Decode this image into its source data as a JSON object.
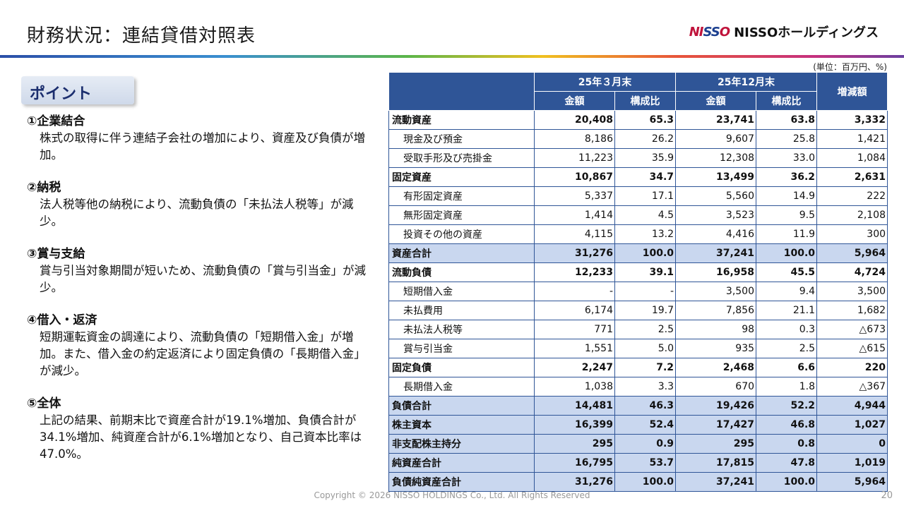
{
  "title": "財務状況：連結貸借対照表",
  "logo": {
    "mark_a": "NI",
    "mark_b": "SS",
    "mark_c": "O",
    "text": "NISSOホールディングス"
  },
  "unit": "(単位：百万円、%)",
  "point_label": "ポイント",
  "points": [
    {
      "head": "①企業結合",
      "body": "株式の取得に伴う連結子会社の増加により、資産及び負債が増加。"
    },
    {
      "head": "②納税",
      "body": "法人税等他の納税により、流動負債の「未払法人税等」が減少。"
    },
    {
      "head": "③賞与支給",
      "body": "賞与引当対象期間が短いため、流動負債の「賞与引当金」が減少。"
    },
    {
      "head": "④借入・返済",
      "body": "短期運転資金の調達により、流動負債の「短期借入金」が増加。また、借入金の約定返済により固定負債の「長期借入金」が減少。"
    },
    {
      "head": "⑤全体",
      "body": "上記の結果、前期末比で資産合計が19.1%増加、負債合計が34.1%増加、純資産合計が6.1%増加となり、自己資本比率は47.0%。"
    }
  ],
  "table": {
    "period1": "25年３月末",
    "period2": "25年12月末",
    "col_amount": "金額",
    "col_ratio": "構成比",
    "col_change": "増減額",
    "rows": [
      {
        "label": "流動資産",
        "a1": "20,408",
        "r1": "65.3",
        "a2": "23,741",
        "r2": "63.8",
        "chg": "3,332"
      },
      {
        "label": "現金及び預金",
        "a1": "8,186",
        "r1": "26.2",
        "a2": "9,607",
        "r2": "25.8",
        "chg": "1,421"
      },
      {
        "label": "受取手形及び売掛金",
        "a1": "11,223",
        "r1": "35.9",
        "a2": "12,308",
        "r2": "33.0",
        "chg": "1,084"
      },
      {
        "label": "固定資産",
        "a1": "10,867",
        "r1": "34.7",
        "a2": "13,499",
        "r2": "36.2",
        "chg": "2,631"
      },
      {
        "label": "有形固定資産",
        "a1": "5,337",
        "r1": "17.1",
        "a2": "5,560",
        "r2": "14.9",
        "chg": "222"
      },
      {
        "label": "無形固定資産",
        "a1": "1,414",
        "r1": "4.5",
        "a2": "3,523",
        "r2": "9.5",
        "chg": "2,108"
      },
      {
        "label": "投資その他の資産",
        "a1": "4,115",
        "r1": "13.2",
        "a2": "4,416",
        "r2": "11.9",
        "chg": "300"
      },
      {
        "label": "資産合計",
        "a1": "31,276",
        "r1": "100.0",
        "a2": "37,241",
        "r2": "100.0",
        "chg": "5,964"
      },
      {
        "label": "流動負債",
        "a1": "12,233",
        "r1": "39.1",
        "a2": "16,958",
        "r2": "45.5",
        "chg": "4,724"
      },
      {
        "label": "短期借入金",
        "a1": "-",
        "r1": "-",
        "a2": "3,500",
        "r2": "9.4",
        "chg": "3,500"
      },
      {
        "label": "未払費用",
        "a1": "6,174",
        "r1": "19.7",
        "a2": "7,856",
        "r2": "21.1",
        "chg": "1,682"
      },
      {
        "label": "未払法人税等",
        "a1": "771",
        "r1": "2.5",
        "a2": "98",
        "r2": "0.3",
        "chg": "△673"
      },
      {
        "label": "賞与引当金",
        "a1": "1,551",
        "r1": "5.0",
        "a2": "935",
        "r2": "2.5",
        "chg": "△615"
      },
      {
        "label": "固定負債",
        "a1": "2,247",
        "r1": "7.2",
        "a2": "2,468",
        "r2": "6.6",
        "chg": "220"
      },
      {
        "label": "長期借入金",
        "a1": "1,038",
        "r1": "3.3",
        "a2": "670",
        "r2": "1.8",
        "chg": "△367"
      },
      {
        "label": "負債合計",
        "a1": "14,481",
        "r1": "46.3",
        "a2": "19,426",
        "r2": "52.2",
        "chg": "4,944"
      },
      {
        "label": "株主資本",
        "a1": "16,399",
        "r1": "52.4",
        "a2": "17,427",
        "r2": "46.8",
        "chg": "1,027"
      },
      {
        "label": "非支配株主持分",
        "a1": "295",
        "r1": "0.9",
        "a2": "295",
        "r2": "0.8",
        "chg": "0"
      },
      {
        "label": "純資産合計",
        "a1": "16,795",
        "r1": "53.7",
        "a2": "17,815",
        "r2": "47.8",
        "chg": "1,019"
      },
      {
        "label": "負債純資産合計",
        "a1": "31,276",
        "r1": "100.0",
        "a2": "37,241",
        "r2": "100.0",
        "chg": "5,964"
      }
    ]
  },
  "footer": "Copyright © 2026 NISSO HOLDINGS Co., Ltd. All Rights Reserved",
  "page_number": "20"
}
